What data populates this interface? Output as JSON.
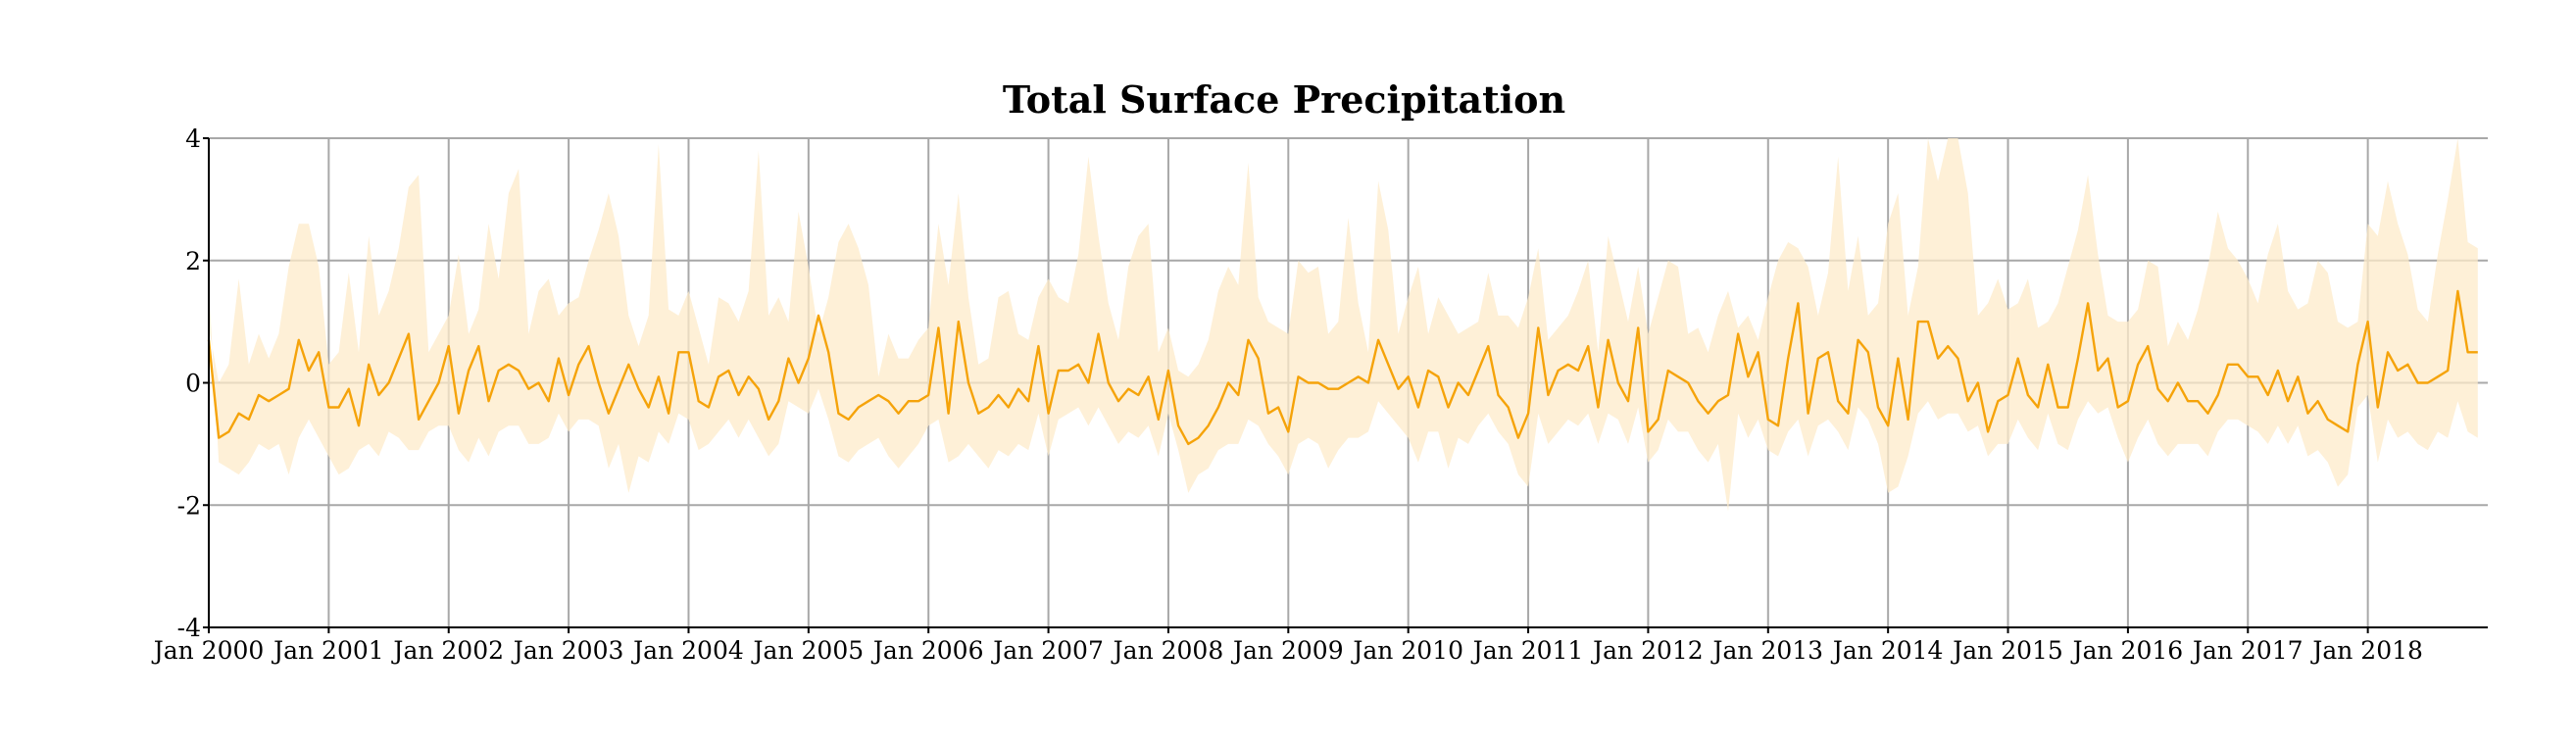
{
  "chart_data": {
    "type": "line",
    "title": "Total Surface Precipitation",
    "xlabel": "",
    "ylabel": "",
    "ylim": [
      -4,
      4
    ],
    "xlim": [
      "2000-01",
      "2018-12"
    ],
    "grid": true,
    "legend": "none",
    "y_ticks": [
      4,
      2,
      0,
      -2,
      -4
    ],
    "x_tick_labels": [
      "Jan 2000",
      "Jan 2001",
      "Jan 2002",
      "Jan 2003",
      "Jan 2004",
      "Jan 2005",
      "Jan 2006",
      "Jan 2007",
      "Jan 2008",
      "Jan 2009",
      "Jan 2010",
      "Jan 2011",
      "Jan 2012",
      "Jan 2013",
      "Jan 2014",
      "Jan 2015",
      "Jan 2016",
      "Jan 2017",
      "Jan 2018"
    ],
    "colors": {
      "line": "#f5a30a",
      "band": "#fdebc9",
      "grid": "#a8a8a8"
    },
    "series": [
      {
        "values": [
          [
            0.7,
            -0.9,
            -0.8,
            -0.5,
            -0.6,
            -0.2,
            -0.3,
            -0.2,
            -0.1,
            0.7,
            0.2,
            0.5,
            -0.4,
            -0.4,
            -0.1,
            -0.7,
            0.3,
            -0.2,
            0.0,
            0.4,
            0.8,
            -0.6,
            -0.3,
            0.0
          ],
          [
            0.6,
            -0.5,
            0.2,
            0.6,
            -0.3,
            0.2,
            0.3,
            0.2,
            -0.1,
            0.0,
            -0.3,
            0.4,
            -0.2,
            0.3,
            0.6,
            0.0,
            -0.5,
            -0.1,
            0.3,
            -0.1,
            -0.4,
            0.1,
            -0.5,
            0.5
          ],
          [
            0.5,
            -0.3,
            -0.4,
            0.1,
            0.2,
            -0.2,
            0.1,
            -0.1,
            -0.6,
            -0.3,
            0.4,
            0.0,
            0.4,
            1.1,
            0.5,
            -0.5,
            -0.6,
            -0.4,
            -0.3,
            -0.2,
            -0.3,
            -0.5,
            -0.3,
            -0.3
          ],
          [
            -0.2,
            0.9,
            -0.5,
            1.0,
            0.0,
            -0.5,
            -0.4,
            -0.2,
            -0.4,
            -0.1,
            -0.3,
            0.6,
            -0.5,
            0.2,
            0.2,
            0.3,
            0.0,
            0.8,
            0.0,
            -0.3,
            -0.1,
            -0.2,
            0.1,
            -0.6
          ],
          [
            0.2,
            -0.7,
            -1.0,
            -0.9,
            -0.7,
            -0.4,
            0.0,
            -0.2,
            0.7,
            0.4,
            -0.5,
            -0.4,
            -0.8,
            0.1,
            0.0,
            0.0,
            -0.1,
            -0.1,
            0.0,
            0.1,
            0.0,
            0.7,
            0.3,
            -0.1
          ],
          [
            0.1,
            -0.4,
            0.2,
            0.1,
            -0.4,
            0.0,
            -0.2,
            0.2,
            0.6,
            -0.2,
            -0.4,
            -0.9,
            -0.5,
            0.9,
            -0.2,
            0.2,
            0.3,
            0.2,
            0.6,
            -0.4,
            0.7,
            0.0,
            -0.3,
            0.9
          ],
          [
            -0.8,
            -0.6,
            0.2,
            0.1,
            0.0,
            -0.3,
            -0.5,
            -0.3,
            -0.2,
            0.8,
            0.1,
            0.5,
            -0.6,
            -0.7,
            0.4,
            1.3,
            -0.5,
            0.4,
            0.5,
            -0.3,
            -0.5,
            0.7,
            0.5,
            -0.4
          ],
          [
            -0.7,
            0.4,
            -0.6,
            1.0,
            1.0,
            0.4,
            0.6,
            0.4,
            -0.3,
            0.0,
            -0.8,
            -0.3,
            -0.2,
            0.4,
            -0.2,
            -0.4,
            0.3,
            -0.4,
            -0.4,
            0.4,
            1.3,
            0.2,
            0.4,
            -0.4
          ],
          [
            -0.3,
            0.3,
            0.6,
            -0.1,
            -0.3,
            0.0,
            -0.3,
            -0.3,
            -0.5,
            -0.2,
            0.3,
            0.3,
            0.1,
            0.1,
            -0.2,
            0.2,
            -0.3,
            0.1,
            -0.5,
            -0.3,
            -0.6,
            -0.7,
            -0.8,
            0.3
          ],
          [
            1.0,
            -0.4,
            0.5,
            0.2,
            0.3,
            0.0,
            0.0,
            0.1,
            0.2,
            1.5,
            0.5,
            0.5
          ]
        ]
      },
      {
        "values": [
          [
            1.6,
            -1.3,
            -1.4,
            -1.5,
            -1.3,
            -1.0,
            -1.1,
            -1.0,
            -1.5,
            -0.9,
            -0.6,
            -0.9,
            -1.2,
            -1.5,
            -1.4,
            -1.1,
            -1.0,
            -1.2,
            -0.8,
            -0.9,
            -1.1,
            -1.1,
            -0.8,
            -0.7
          ],
          [
            -0.7,
            -1.1,
            -1.3,
            -0.9,
            -1.2,
            -0.8,
            -0.7,
            -0.7,
            -1.0,
            -1.0,
            -0.9,
            -0.5,
            -0.8,
            -0.6,
            -0.6,
            -0.7,
            -1.4,
            -1.0,
            -1.8,
            -1.2,
            -1.3,
            -0.8,
            -1.0,
            -0.5
          ],
          [
            -0.6,
            -1.1,
            -1.0,
            -0.8,
            -0.6,
            -0.9,
            -0.6,
            -0.9,
            -1.2,
            -1.0,
            -0.3,
            -0.4,
            -0.5,
            -0.1,
            -0.6,
            -1.2,
            -1.3,
            -1.1,
            -1.0,
            -0.9,
            -1.2,
            -1.4,
            -1.2,
            -1.0
          ],
          [
            -0.7,
            -0.6,
            -1.3,
            -1.2,
            -1.0,
            -1.2,
            -1.4,
            -1.1,
            -1.2,
            -1.0,
            -1.1,
            -0.5,
            -1.2,
            -0.6,
            -0.5,
            -0.4,
            -0.7,
            -0.4,
            -0.7,
            -1.0,
            -0.8,
            -0.9,
            -0.7,
            -1.2
          ],
          [
            -0.5,
            -1.1,
            -1.8,
            -1.5,
            -1.4,
            -1.1,
            -1.0,
            -1.0,
            -0.6,
            -0.7,
            -1.0,
            -1.2,
            -1.5,
            -1.0,
            -0.9,
            -1.0,
            -1.4,
            -1.1,
            -0.9,
            -0.9,
            -0.8,
            -0.3,
            -0.5,
            -0.7
          ],
          [
            -0.9,
            -1.3,
            -0.8,
            -0.8,
            -1.4,
            -0.9,
            -1.0,
            -0.7,
            -0.5,
            -0.8,
            -1.0,
            -1.5,
            -1.7,
            -0.5,
            -1.0,
            -0.8,
            -0.6,
            -0.7,
            -0.5,
            -1.0,
            -0.5,
            -0.6,
            -1.0,
            -0.4
          ],
          [
            -1.3,
            -1.1,
            -0.6,
            -0.8,
            -0.8,
            -1.1,
            -1.3,
            -1.0,
            -2.1,
            -0.5,
            -0.9,
            -0.6,
            -1.1,
            -1.2,
            -0.8,
            -0.6,
            -1.2,
            -0.7,
            -0.6,
            -0.8,
            -1.1,
            -0.4,
            -0.6,
            -1.0
          ],
          [
            -1.8,
            -1.7,
            -1.2,
            -0.5,
            -0.3,
            -0.6,
            -0.5,
            -0.5,
            -0.8,
            -0.7,
            -1.2,
            -1.0,
            -1.0,
            -0.6,
            -0.9,
            -1.1,
            -0.5,
            -1.0,
            -1.1,
            -0.6,
            -0.3,
            -0.5,
            -0.4,
            -0.9
          ],
          [
            -1.3,
            -0.9,
            -0.6,
            -1.0,
            -1.2,
            -1.0,
            -1.0,
            -1.0,
            -1.2,
            -0.8,
            -0.6,
            -0.6,
            -0.7,
            -0.8,
            -1.0,
            -0.7,
            -1.0,
            -0.7,
            -1.2,
            -1.1,
            -1.3,
            -1.7,
            -1.5,
            -0.4
          ],
          [
            -0.2,
            -1.3,
            -0.6,
            -0.9,
            -0.8,
            -1.0,
            -1.1,
            -0.8,
            -0.9,
            -0.3,
            -0.8,
            -0.9
          ]
        ]
      },
      {
        "values": [
          [
            0.9,
            0.0,
            0.3,
            1.7,
            0.3,
            0.8,
            0.4,
            0.8,
            1.9,
            2.6,
            2.6,
            1.9,
            0.3,
            0.5,
            1.8,
            0.5,
            2.4,
            1.1,
            1.5,
            2.2,
            3.2,
            3.4,
            0.5,
            0.8
          ],
          [
            1.1,
            2.1,
            0.8,
            1.2,
            2.6,
            1.7,
            3.1,
            3.5,
            0.8,
            1.5,
            1.7,
            1.1,
            1.3,
            1.4,
            2.0,
            2.5,
            3.1,
            2.4,
            1.1,
            0.6,
            1.1,
            3.9,
            1.2,
            1.1
          ],
          [
            1.5,
            0.9,
            0.3,
            1.4,
            1.3,
            1.0,
            1.5,
            3.8,
            1.1,
            1.4,
            1.0,
            2.8,
            1.9,
            0.8,
            1.4,
            2.3,
            2.6,
            2.2,
            1.6,
            0.1,
            0.8,
            0.4,
            0.4,
            0.7
          ],
          [
            0.9,
            2.6,
            1.6,
            3.1,
            1.4,
            0.3,
            0.4,
            1.4,
            1.5,
            0.8,
            0.7,
            1.4,
            1.7,
            1.4,
            1.3,
            2.1,
            3.7,
            2.4,
            1.3,
            0.7,
            1.9,
            2.4,
            2.6,
            0.5
          ],
          [
            0.9,
            0.2,
            0.1,
            0.3,
            0.7,
            1.5,
            1.9,
            1.6,
            3.6,
            1.4,
            1.0,
            0.9,
            0.8,
            2.0,
            1.8,
            1.9,
            0.8,
            1.0,
            2.7,
            1.3,
            0.5,
            3.3,
            2.5,
            0.8
          ],
          [
            1.4,
            1.9,
            0.8,
            1.4,
            1.1,
            0.8,
            0.9,
            1.0,
            1.8,
            1.1,
            1.1,
            0.9,
            1.4,
            2.2,
            0.7,
            0.9,
            1.1,
            1.5,
            2.0,
            0.5,
            2.4,
            1.7,
            1.0,
            1.9
          ],
          [
            0.8,
            1.4,
            2.0,
            1.9,
            0.8,
            0.9,
            0.5,
            1.1,
            1.5,
            0.9,
            1.1,
            0.7,
            1.4,
            2.0,
            2.3,
            2.2,
            1.9,
            1.1,
            1.8,
            3.7,
            1.5,
            2.4,
            1.1,
            1.3
          ],
          [
            2.6,
            3.1,
            1.1,
            1.9,
            4.1,
            3.3,
            4.0,
            4.1,
            3.1,
            1.1,
            1.3,
            1.7,
            1.2,
            1.3,
            1.7,
            0.9,
            1.0,
            1.3,
            1.9,
            2.5,
            3.4,
            2.1,
            1.1,
            1.0
          ],
          [
            1.0,
            1.2,
            2.0,
            1.9,
            0.6,
            1.0,
            0.7,
            1.2,
            1.9,
            2.8,
            2.2,
            2.0,
            1.7,
            1.3,
            2.1,
            2.6,
            1.5,
            1.2,
            1.3,
            2.0,
            1.8,
            1.0,
            0.9,
            1.0
          ],
          [
            2.6,
            2.4,
            3.3,
            2.6,
            2.1,
            1.2,
            1.0,
            2.1,
            3.0,
            4.1,
            2.3,
            2.2
          ]
        ]
      }
    ]
  }
}
